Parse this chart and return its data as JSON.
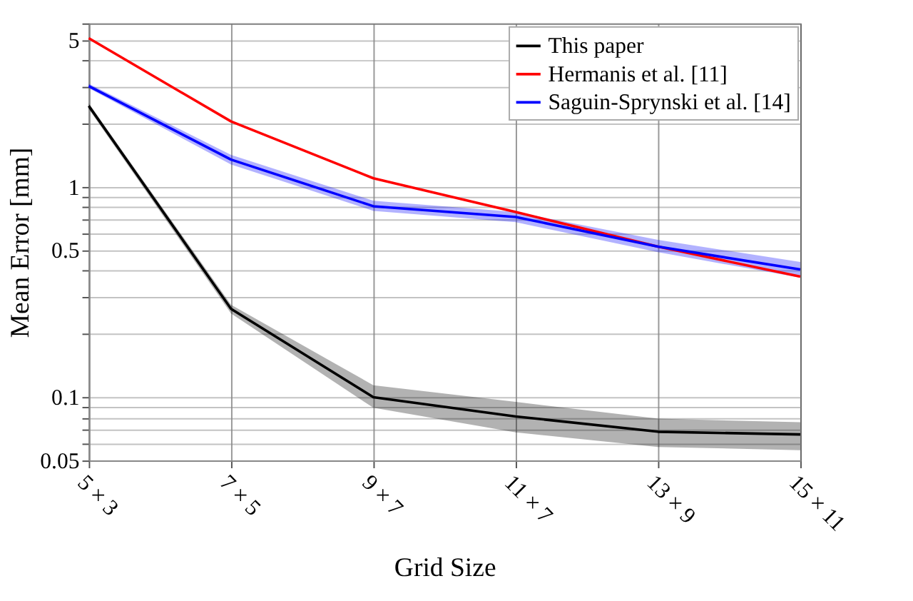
{
  "chart_data": {
    "type": "line",
    "xlabel": "Grid Size",
    "ylabel": "Mean Error [mm]",
    "categories": [
      "5 × 3",
      "7 × 5",
      "9 × 7",
      "11 × 7",
      "13 × 9",
      "15 × 11"
    ],
    "series": [
      {
        "name": "This paper",
        "color": "#000000",
        "values": [
          2.43,
          0.263,
          0.1,
          0.081,
          0.0685,
          0.0665
        ],
        "lower": [
          2.35,
          0.25,
          0.089,
          0.068,
          0.058,
          0.056
        ],
        "upper": [
          2.5,
          0.275,
          0.114,
          0.095,
          0.079,
          0.076
        ]
      },
      {
        "name": "Hermanis et al. [11]",
        "color": "#ff0000",
        "values": [
          5.1,
          2.05,
          1.1,
          0.76,
          0.52,
          0.375
        ]
      },
      {
        "name": "Saguin-Sprynski et al. [14]",
        "color": "#0000ff",
        "values": [
          3.02,
          1.35,
          0.81,
          0.72,
          0.52,
          0.405
        ],
        "lower": [
          2.95,
          1.28,
          0.77,
          0.68,
          0.49,
          0.37
        ],
        "upper": [
          3.1,
          1.42,
          0.86,
          0.76,
          0.56,
          0.44
        ]
      }
    ],
    "log": "y",
    "ylim": [
      0.05,
      6
    ],
    "yticks": [
      0.05,
      {
        "value": 0.06,
        "label": null
      },
      {
        "value": 0.07,
        "label": null
      },
      {
        "value": 0.08,
        "label": null
      },
      {
        "value": 0.09,
        "label": null
      },
      0.1,
      {
        "value": 0.2,
        "label": null
      },
      {
        "value": 0.3,
        "label": null
      },
      {
        "value": 0.4,
        "label": null
      },
      0.5,
      {
        "value": 0.6,
        "label": null
      },
      {
        "value": 0.7,
        "label": null
      },
      {
        "value": 0.8,
        "label": null
      },
      {
        "value": 0.9,
        "label": null
      },
      1,
      {
        "value": 2,
        "label": null
      },
      {
        "value": 3,
        "label": null
      },
      {
        "value": 4,
        "label": null
      },
      5,
      {
        "value": 6,
        "label": null
      }
    ],
    "grid": true,
    "legend": "top right",
    "marker": "none",
    "line_style": "solid"
  }
}
